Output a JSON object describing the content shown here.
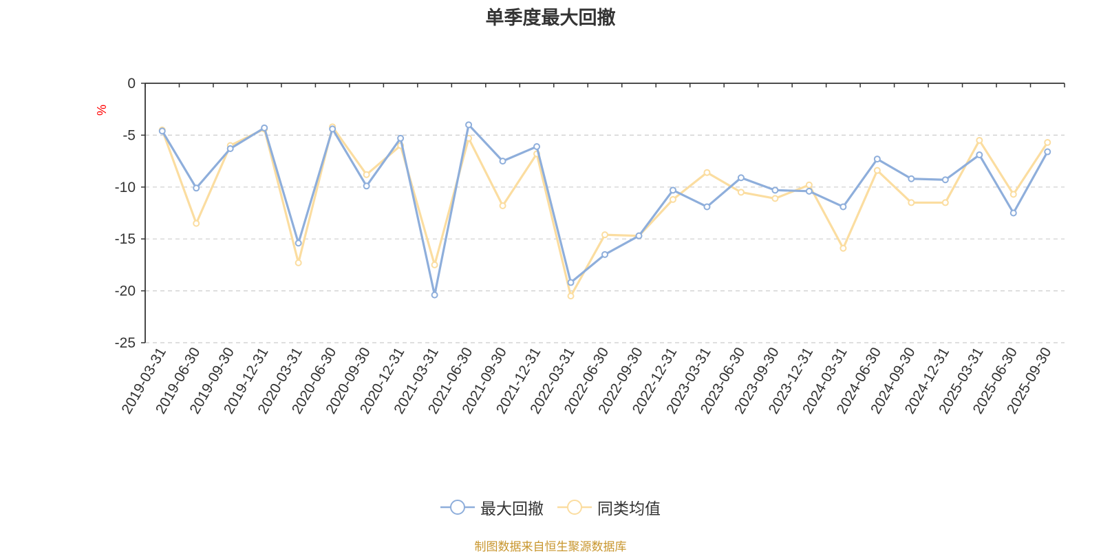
{
  "chart_data": {
    "type": "line",
    "title": "单季度最大回撤",
    "ylabel": "%",
    "xlabel": "",
    "ylim": [
      -25,
      0
    ],
    "yticks": [
      0,
      -5,
      -10,
      -15,
      -20,
      -25
    ],
    "grid": true,
    "legend_position": "bottom-center",
    "categories": [
      "2019-03-31",
      "2019-06-30",
      "2019-09-30",
      "2019-12-31",
      "2020-03-31",
      "2020-06-30",
      "2020-09-30",
      "2020-12-31",
      "2021-03-31",
      "2021-06-30",
      "2021-09-30",
      "2021-12-31",
      "2022-03-31",
      "2022-06-30",
      "2022-09-30",
      "2022-12-31",
      "2023-03-31",
      "2023-06-30",
      "2023-09-30",
      "2023-12-31",
      "2024-03-31",
      "2024-06-30",
      "2024-09-30",
      "2024-12-31",
      "2025-03-31",
      "2025-06-30",
      "2025-09-30"
    ],
    "series": [
      {
        "name": "最大回撤",
        "color": "#8eaedb",
        "values": [
          -4.6,
          -10.1,
          -6.3,
          -4.3,
          -15.4,
          -4.4,
          -9.9,
          -5.3,
          -20.4,
          -4.0,
          -7.5,
          -6.1,
          -19.2,
          -16.5,
          -14.7,
          -10.3,
          -11.9,
          -9.1,
          -10.3,
          -10.4,
          -11.9,
          -7.3,
          -9.2,
          -9.3,
          -6.9,
          -12.5,
          -6.6
        ]
      },
      {
        "name": "同类均值",
        "color": "#fbdda0",
        "values": [
          -4.5,
          -13.5,
          -6.0,
          -4.4,
          -17.3,
          -4.2,
          -8.8,
          -6.0,
          -17.5,
          -5.3,
          -11.8,
          -6.8,
          -20.5,
          -14.6,
          -14.7,
          -11.2,
          -8.6,
          -10.5,
          -11.1,
          -9.8,
          -15.9,
          -8.4,
          -11.5,
          -11.5,
          -5.5,
          -10.7,
          -5.7
        ]
      }
    ]
  },
  "source_note": "制图数据来自恒生聚源数据库",
  "ylabel_color": "#ff0000"
}
